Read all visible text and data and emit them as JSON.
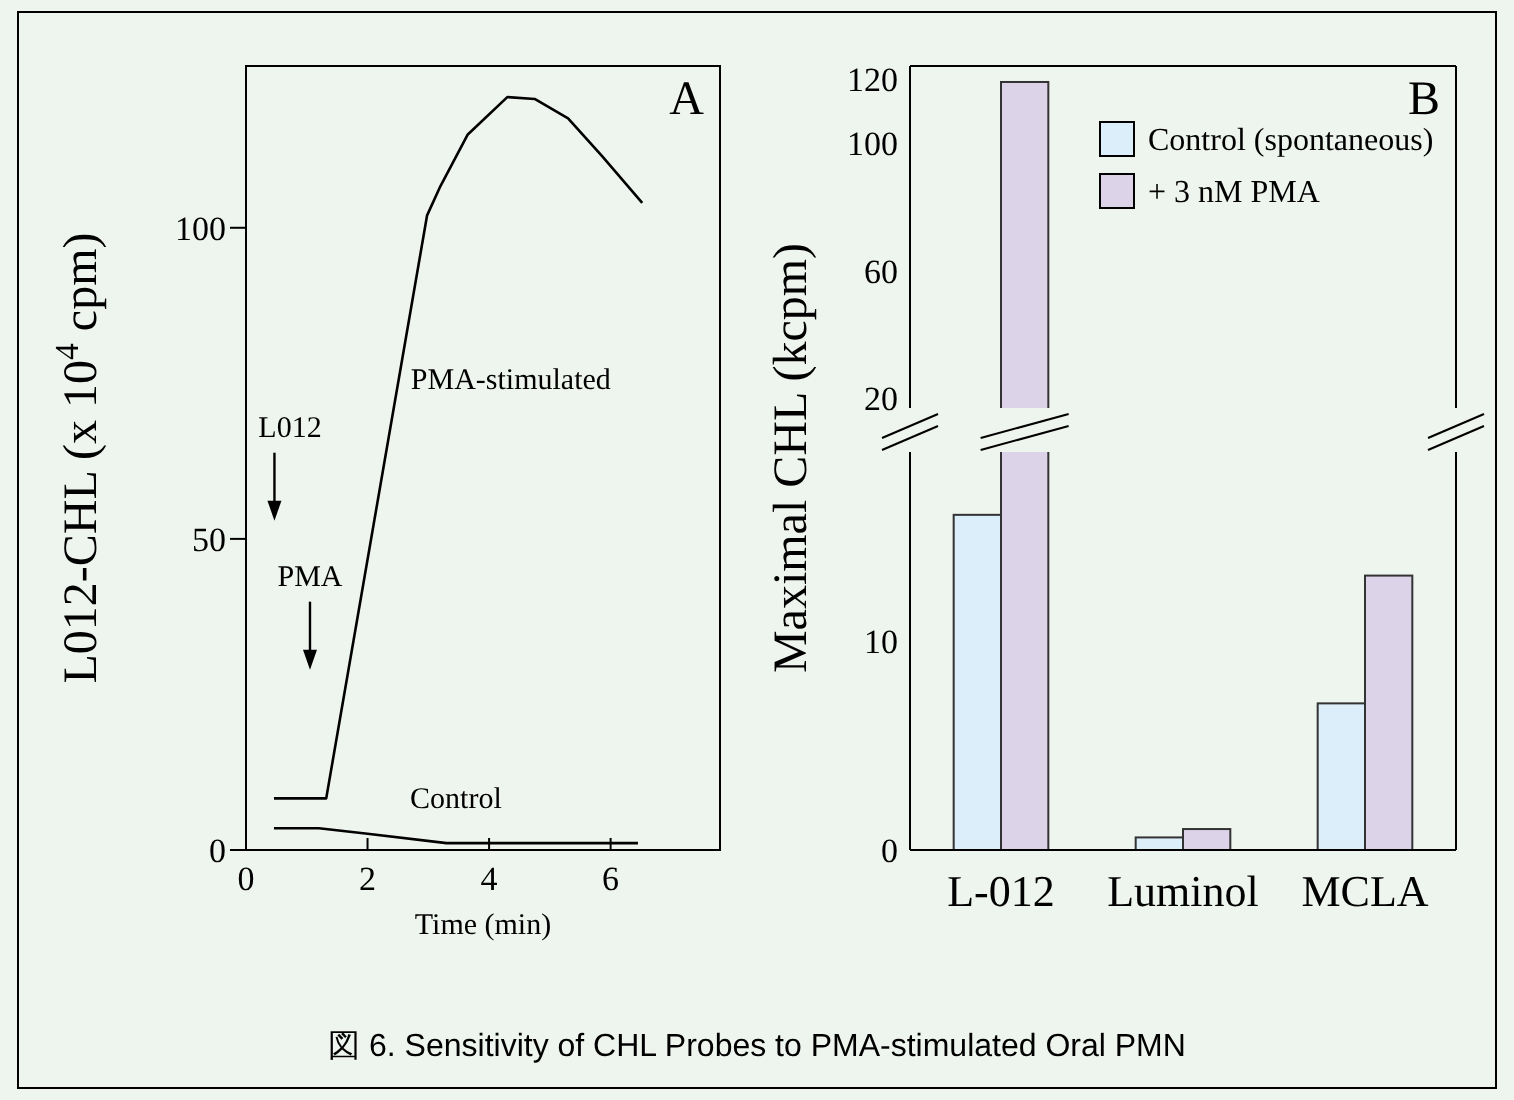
{
  "chart_data": [
    {
      "type": "line",
      "xlabel": "Time (min)",
      "ylabel": "L012-CHL (x 10$^{4}$ cpm)",
      "xlim": [
        0,
        7.8
      ],
      "xticks": [
        0,
        2,
        4,
        6
      ],
      "ylim": [
        0,
        126
      ],
      "yticks": [
        0,
        50,
        100
      ],
      "grid": false,
      "series": [
        {
          "name": "PMA-stimulated",
          "color": "#000000",
          "x": [
            0.46,
            1.32,
            2.98,
            3.2,
            3.65,
            4.3,
            4.75,
            5.3,
            5.86,
            6.52
          ],
          "values": [
            8.3,
            8.3,
            102,
            106.7,
            115,
            121,
            120.7,
            117.6,
            111.5,
            104
          ]
        },
        {
          "name": "Control",
          "color": "#000000",
          "x": [
            0.46,
            1.2,
            2.0,
            3.3,
            6.45
          ],
          "values": [
            3.5,
            3.5,
            2.6,
            1.1,
            1.1
          ]
        }
      ],
      "annotations": [
        "A",
        "L012",
        "PMA"
      ]
    },
    {
      "type": "bar",
      "categories": [
        null,
        null,
        null
      ],
      "ylim": [
        17,
        124
      ],
      "yticks": [
        20,
        60,
        100,
        120
      ],
      "tick_labels": "y",
      "legend": "top right",
      "series": [
        {
          "name": "Control (spontaneous)",
          "color": "#dbeefa",
          "values": [
            null,
            null,
            null
          ]
        },
        {
          "name": "+ 3 nM PMA",
          "color": "#ddd3e8",
          "values": [
            119,
            null,
            null
          ]
        }
      ],
      "annotations": [
        "B"
      ]
    },
    {
      "type": "bar",
      "categories": [
        "L-012",
        "Luminol",
        "MCLA"
      ],
      "ylabel": "Maximal CHL (kcpm)",
      "ylim": [
        0,
        19
      ],
      "yticks": [
        0,
        10
      ],
      "series": [
        {
          "color": "#dbeefa",
          "values": [
            16,
            0.6,
            7.0
          ]
        },
        {
          "color": "#ddd3e8",
          "values": [
            19,
            1.0,
            13.1
          ]
        }
      ],
      "annotations": [
        "図 6. Sensitivity of CHL Probes to PMA-stimulated Oral PMN"
      ]
    }
  ]
}
